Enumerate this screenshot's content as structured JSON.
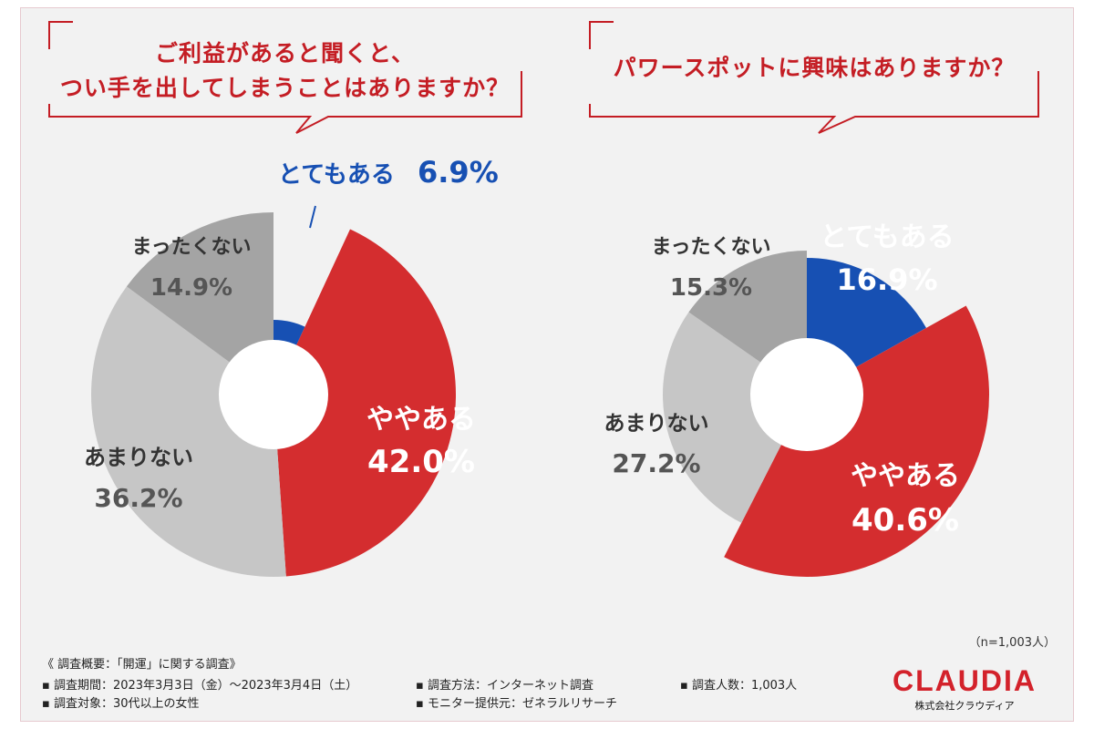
{
  "colors": {
    "very": "#1750b3",
    "somewhat": "#d42d2f",
    "not_much": "#c6c6c6",
    "not_at_all": "#a4a4a4",
    "accent": "#c41d24"
  },
  "chart_data": [
    {
      "type": "pie",
      "title": "ご利益があると聞くと、つい手を出してしまうことはありますか？",
      "title_lines": [
        "ご利益があると聞くと、",
        "つい手を出してしまうことはありますか？"
      ],
      "categories": [
        "とてもある",
        "ややある",
        "あまりない",
        "まったくない"
      ],
      "values": [
        6.9,
        42.0,
        36.2,
        14.9
      ],
      "value_labels": [
        "6.9%",
        "42.0%",
        "36.2%",
        "14.9%"
      ]
    },
    {
      "type": "pie",
      "title": "パワースポットに興味はありますか？",
      "title_lines": [
        "パワースポットに興味はありますか？"
      ],
      "categories": [
        "とてもある",
        "ややある",
        "あまりない",
        "まったくない"
      ],
      "values": [
        16.9,
        40.6,
        27.2,
        15.3
      ],
      "value_labels": [
        "16.9%",
        "40.6%",
        "27.2%",
        "15.3%"
      ]
    }
  ],
  "sample_note": "（n=1,003人）",
  "footer": {
    "title": "《 調査概要：「開運」に関する調査》",
    "items": [
      "▪ 調査期間：2023年3月3日（金）〜2023年3月4日（土）",
      "▪ 調査方法：インターネット調査",
      "▪ 調査人数：1,003人",
      "▪ 調査対象：30代以上の女性",
      "▪ モニター提供元：ゼネラルリサーチ"
    ]
  },
  "logo": {
    "brand": "CLAUDIA",
    "company": "株式会社クラウディア"
  }
}
